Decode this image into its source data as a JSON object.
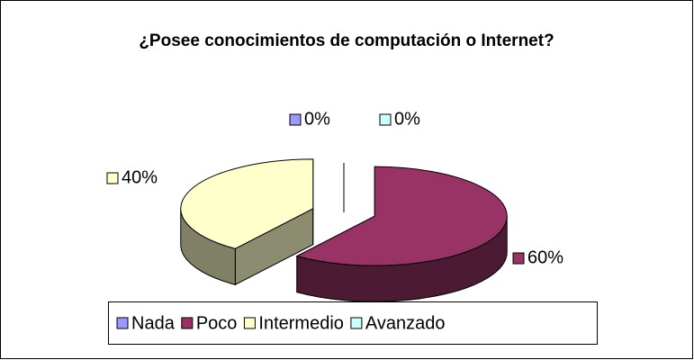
{
  "chart_data": {
    "type": "pie",
    "title": "¿Posee conocimientos de computación o Internet?",
    "categories": [
      "Nada",
      "Poco",
      "Intermedio",
      "Avanzado"
    ],
    "values": [
      0,
      60,
      40,
      0
    ],
    "value_labels": [
      "0%",
      "60%",
      "40%",
      "0%"
    ],
    "colors": [
      "#9999ff",
      "#993366",
      "#ffffcc",
      "#ccffff"
    ],
    "legend": "bottom",
    "three_d": true,
    "exploded": true
  }
}
